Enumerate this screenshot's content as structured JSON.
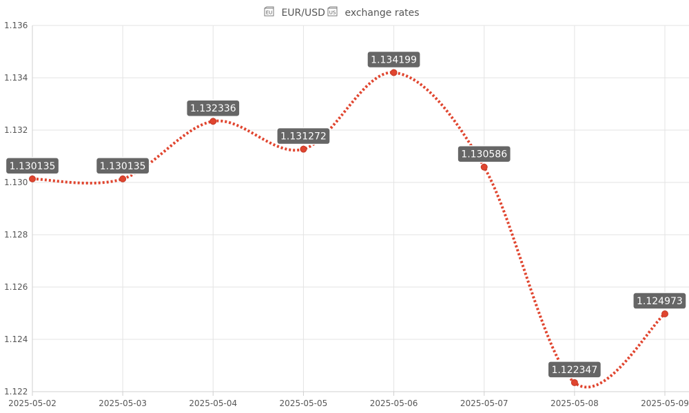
{
  "chart_data": {
    "type": "line",
    "title": "🇪🇺 EUR/USD 🇺🇸 exchange rates",
    "title_flags": [
      "EU",
      "US"
    ],
    "xlabel": "",
    "ylabel": "",
    "categories": [
      "2025-05-02",
      "2025-05-03",
      "2025-05-04",
      "2025-05-05",
      "2025-05-06",
      "2025-05-07",
      "2025-05-08",
      "2025-05-09"
    ],
    "y_ticks": [
      "1.122",
      "1.124",
      "1.126",
      "1.128",
      "1.130",
      "1.132",
      "1.134",
      "1.136"
    ],
    "ylim": [
      1.122,
      1.136
    ],
    "grid": true,
    "series": [
      {
        "color": "#e0452f",
        "style": "dotted-smooth",
        "points": [
          {
            "x": "2025-05-02",
            "y": 1.130135,
            "label": "1.130135"
          },
          {
            "x": "2025-05-03",
            "y": 1.130135,
            "label": "1.130135"
          },
          {
            "x": "2025-05-04",
            "y": 1.132336,
            "label": "1.132336"
          },
          {
            "x": "2025-05-05",
            "y": 1.131272,
            "label": "1.131272"
          },
          {
            "x": "2025-05-06",
            "y": 1.134199,
            "label": "1.134199"
          },
          {
            "x": "2025-05-07",
            "y": 1.130586,
            "label": "1.130586"
          },
          {
            "x": "2025-05-08",
            "y": 1.122347,
            "label": "1.122347"
          },
          {
            "x": "2025-05-09",
            "y": 1.124973,
            "label": "1.124973"
          }
        ]
      }
    ],
    "data_label_bg": "#666666"
  }
}
